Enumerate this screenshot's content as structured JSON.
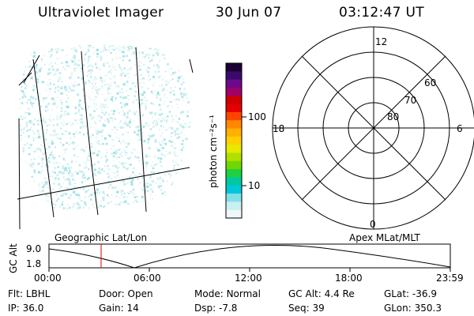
{
  "header": {
    "title": "Ultraviolet Imager",
    "date": "30 Jun 07",
    "time": "03:12:47 UT"
  },
  "colorbar": {
    "label": "photon cm⁻²s⁻¹",
    "ticks": [
      "100",
      "10"
    ],
    "colors": [
      "#1a0033",
      "#3a0a6a",
      "#6a0a8a",
      "#a0006a",
      "#cc0000",
      "#e30000",
      "#ff4400",
      "#ff8800",
      "#ffb000",
      "#ffd000",
      "#e8e800",
      "#b0e000",
      "#70d800",
      "#20d040",
      "#00c8a0",
      "#00c8d8",
      "#80e0e8",
      "#c8f0f0",
      "#eef8f8"
    ]
  },
  "polar": {
    "labels": {
      "top": "12",
      "bottom": "0",
      "left": "18",
      "right": "6"
    },
    "ring_labels": [
      "60",
      "70",
      "80"
    ]
  },
  "strip": {
    "left_label": "Geographic Lat/Lon",
    "right_label": "Apex MLat/MLT",
    "y_axis_label": "GC Alt",
    "y_ticks": [
      "9.0",
      "1.8"
    ],
    "x_ticks": [
      "00:00",
      "06:00",
      "12:00",
      "18:00",
      "23:59"
    ],
    "marker_color": "#e00000"
  },
  "info": {
    "row1": [
      {
        "key": "Flt:",
        "value": "LBHL"
      },
      {
        "key": "Door:",
        "value": "Open"
      },
      {
        "key": "Mode:",
        "value": "Normal"
      },
      {
        "key": "GC Alt:",
        "value": "4.4 Re"
      },
      {
        "key": "GLat:",
        "value": "-36.9"
      }
    ],
    "row2": [
      {
        "key": "IP:",
        "value": "36.0"
      },
      {
        "key": "Gain:",
        "value": "14"
      },
      {
        "key": "Dsp:",
        "value": "-7.8"
      },
      {
        "key": "Seq:",
        "value": "39"
      },
      {
        "key": "GLon:",
        "value": "350.3"
      }
    ]
  },
  "image_color": "#9fe0e6"
}
